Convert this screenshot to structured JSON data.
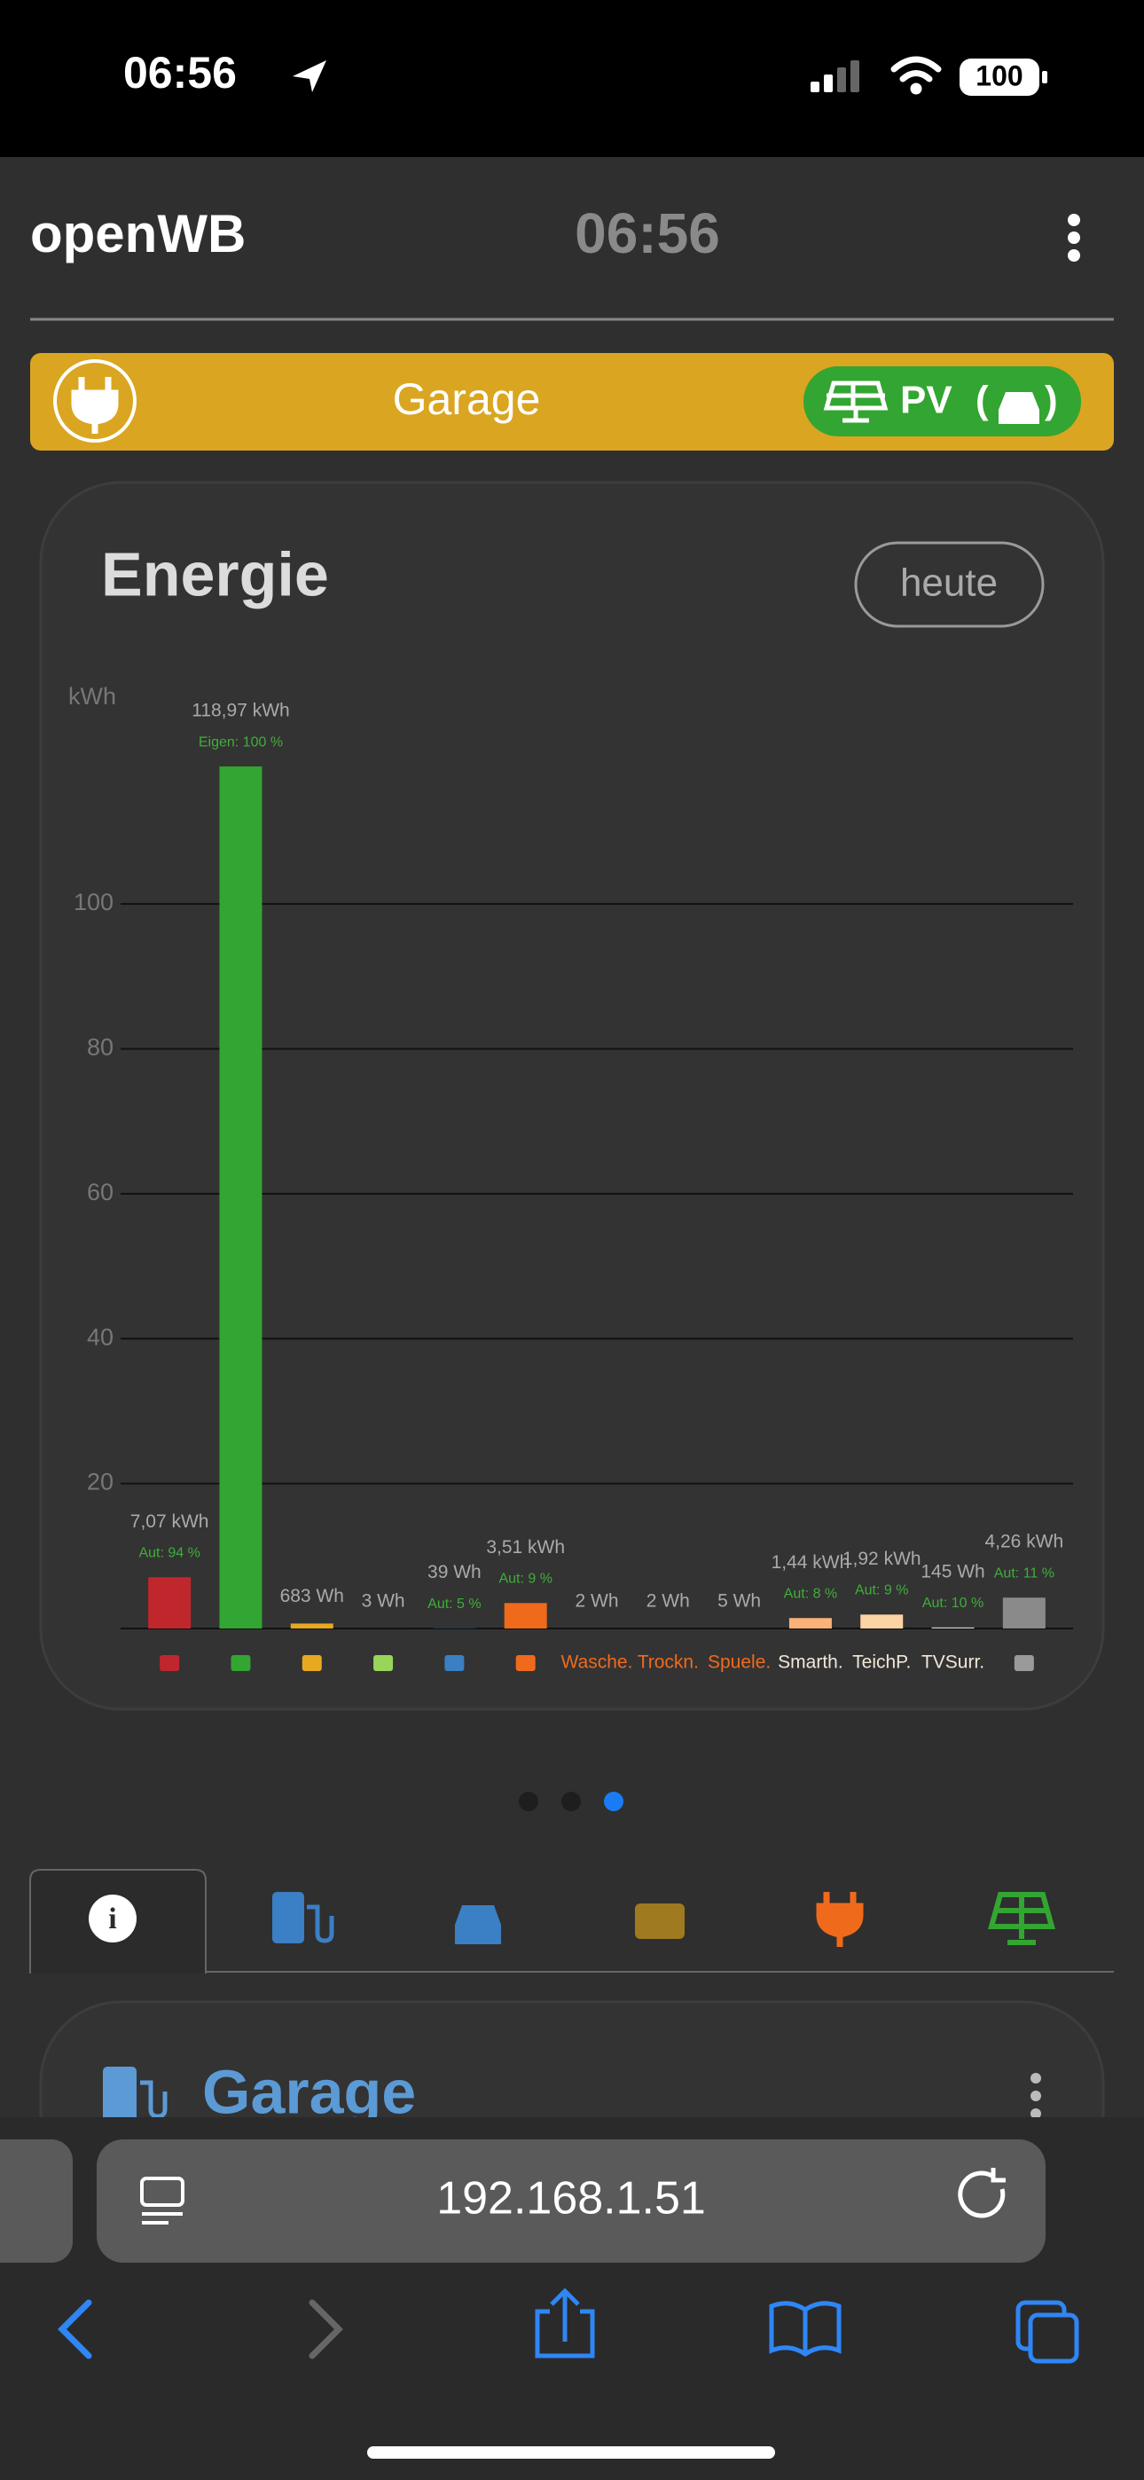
{
  "status_bar": {
    "time": "06:56",
    "battery": "100"
  },
  "header": {
    "title": "openWB",
    "clock": "06:56"
  },
  "station": {
    "name": "Garage",
    "mode": "PV"
  },
  "card": {
    "title": "Energie",
    "range_button": "heute"
  },
  "chart_data": {
    "type": "bar",
    "y_label": "kWh",
    "categories": [
      null,
      null,
      null,
      null,
      null,
      null,
      "Wasche.",
      "Trockn.",
      "Spuele.",
      "Smarth.",
      "TeichP.",
      "TVSurr.",
      null
    ],
    "values": [
      7.07,
      118.97,
      0.683,
      0.003,
      0.039,
      3.51,
      0.002,
      0.002,
      0.005,
      1.44,
      1.92,
      0.145,
      4.26
    ],
    "value_labels": [
      "7,07 kWh",
      "118,97 kWh",
      "683 Wh",
      "3 Wh",
      "39 Wh",
      "3,51 kWh",
      "2 Wh",
      "2 Wh",
      "5 Wh",
      "1,44 kWh",
      "1,92 kWh",
      "145 Wh",
      "4,26 kWh"
    ],
    "sublabels": [
      "Aut: 94 %",
      "Eigen: 100 %",
      null,
      null,
      "Aut: 5 %",
      "Aut: 9 %",
      null,
      null,
      null,
      "Aut: 8 %",
      "Aut: 9 %",
      "Aut: 10 %",
      "Aut: 11 %"
    ],
    "colors": [
      "#c0272d",
      "#33a532",
      "#e8a820",
      "#9ad45a",
      "#3b7fc4",
      "#f06a1c",
      "#f06a1c",
      "#f06a1c",
      "#f06a1c",
      "#f9b27a",
      "#fcd3a4",
      "#d9d9d9",
      "#8a8a8a"
    ],
    "label_colors": [
      "#c0272d",
      "#33a532",
      "#e8a820",
      "#9ad45a",
      "#3b7fc4",
      "#f06a1c",
      "#f06a1c",
      "#f06a1c",
      "#f06a1c",
      "#f2e6d8",
      "#f2e6d8",
      "#f2e6d8",
      "#9a9a9a"
    ],
    "ylim": [
      0,
      130
    ],
    "yticks": [
      20,
      40,
      60,
      80,
      100
    ],
    "grid": true
  },
  "next_card": {
    "title": "Garage"
  },
  "browser": {
    "url": "192.168.1.51"
  }
}
